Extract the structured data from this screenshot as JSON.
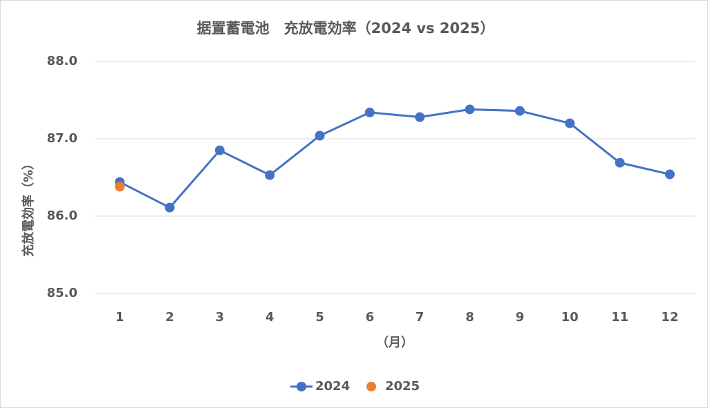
{
  "chart_data": {
    "type": "line",
    "title": "据置蓄電池　充放電効率（2024 vs 2025）",
    "y_label": "充放電効率（%）",
    "x_label": "（月）",
    "categories": [
      "1",
      "2",
      "3",
      "4",
      "5",
      "6",
      "7",
      "8",
      "9",
      "10",
      "11",
      "12"
    ],
    "series": [
      {
        "name": "2024",
        "color": "#4472c4",
        "line": true,
        "values": [
          86.44,
          86.11,
          86.85,
          86.53,
          87.04,
          87.34,
          87.28,
          87.38,
          87.36,
          87.2,
          86.69,
          86.54
        ]
      },
      {
        "name": "2025",
        "color": "#ed7d31",
        "line": false,
        "values": [
          86.38,
          null,
          null,
          null,
          null,
          null,
          null,
          null,
          null,
          null,
          null,
          null
        ]
      }
    ],
    "ylim": [
      85,
      88
    ],
    "yticks": [
      {
        "value": 85,
        "label": "85.0"
      },
      {
        "value": 86,
        "label": "86.0"
      },
      {
        "value": 87,
        "label": "87.0"
      },
      {
        "value": 88,
        "label": "88.0"
      }
    ],
    "grid": true,
    "legend": "bottom"
  }
}
